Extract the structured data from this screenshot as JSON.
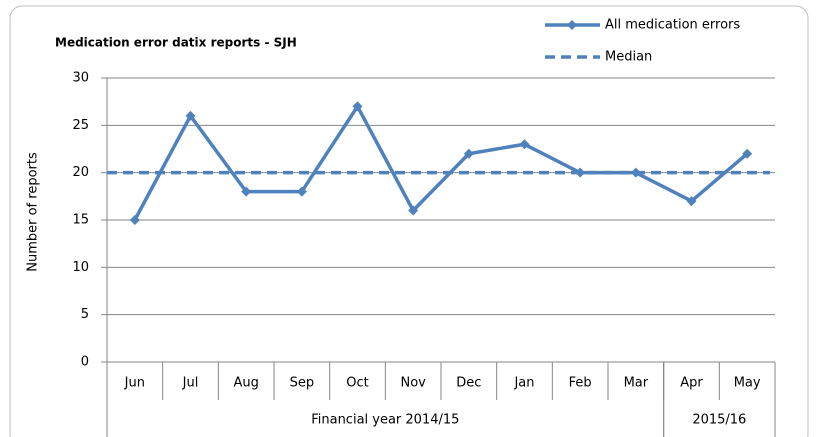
{
  "chart_data": {
    "type": "line",
    "title": "Medication error datix reports - SJH",
    "y_label": "Number of reports",
    "categories": [
      "Jun",
      "Jul",
      "Aug",
      "Sep",
      "Oct",
      "Nov",
      "Dec",
      "Jan",
      "Feb",
      "Mar",
      "Apr",
      "May"
    ],
    "category_groups": [
      {
        "label": "Financial year 2014/15",
        "count": 10
      },
      {
        "label": "2015/16",
        "count": 2
      }
    ],
    "series": [
      {
        "name": "All medication errors",
        "color": "#4f81bd",
        "values": [
          15,
          26,
          18,
          18,
          27,
          16,
          22,
          23,
          20,
          20,
          17,
          22
        ]
      }
    ],
    "reference_line": {
      "name": "Median",
      "value": 20,
      "color": "#4f81bd",
      "style": "dashed"
    },
    "ylim": [
      0,
      30
    ],
    "yticks": [
      0,
      5,
      10,
      15,
      20,
      25,
      30
    ],
    "grid": true,
    "legend": "top-right"
  }
}
